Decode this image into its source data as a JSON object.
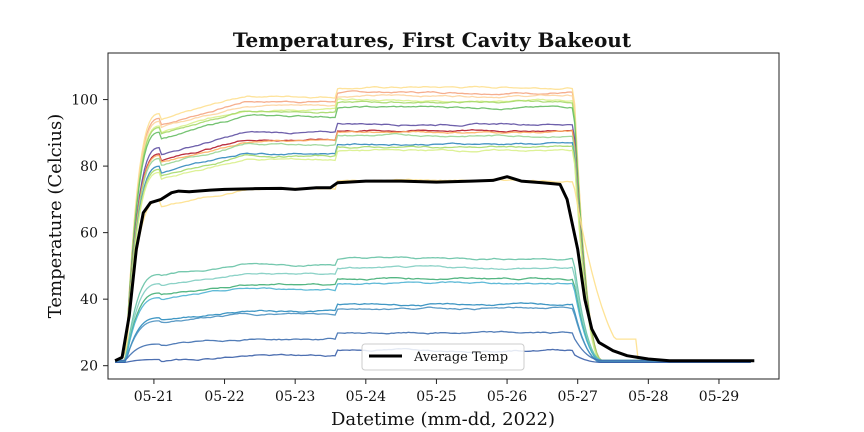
{
  "chart_data": {
    "type": "line",
    "title": "Temperatures, First Cavity Bakeout",
    "xlabel": "Datetime (mm-dd, 2022)",
    "ylabel": "Temperature (Celcius)",
    "xlim": [
      -0.65,
      8.85
    ],
    "ylim": [
      16,
      114
    ],
    "xticks": [
      0,
      1,
      2,
      3,
      4,
      5,
      6,
      7,
      8
    ],
    "xtick_labels": [
      "05-21",
      "05-22",
      "05-23",
      "05-24",
      "05-25",
      "05-26",
      "05-27",
      "05-28",
      "05-29"
    ],
    "yticks": [
      20,
      40,
      60,
      80,
      100
    ],
    "ytick_labels": [
      "20",
      "40",
      "60",
      "80",
      "100"
    ],
    "legend": {
      "position": "bottom-center",
      "entries": [
        "Average Temp"
      ]
    },
    "grid": false,
    "sensors": [
      {
        "plateau": 101.5,
        "color": "#f4a582",
        "late": 0
      },
      {
        "plateau": 103,
        "color": "#fee090",
        "late": 0
      },
      {
        "plateau": 100.5,
        "color": "#fdd49e",
        "late": 0
      },
      {
        "plateau": 99,
        "color": "#d9ef8b",
        "late": 0
      },
      {
        "plateau": 98.5,
        "color": "#a6d96a",
        "late": 0
      },
      {
        "plateau": 97,
        "color": "#66bd63",
        "late": 0
      },
      {
        "plateau": 92,
        "color": "#5e4fa2",
        "late": 0
      },
      {
        "plateau": 90,
        "color": "#b2182b",
        "late": 0
      },
      {
        "plateau": 89.5,
        "color": "#fdae61",
        "late": 0
      },
      {
        "plateau": 88.5,
        "color": "#99d594",
        "late": 0
      },
      {
        "plateau": 86,
        "color": "#3288bd",
        "late": 0
      },
      {
        "plateau": 85,
        "color": "#a6d96a",
        "late": 0
      },
      {
        "plateau": 84,
        "color": "#d9ef8b",
        "late": 0
      },
      {
        "plateau": 75,
        "color": "#fee08b",
        "late": 1
      },
      {
        "plateau": 51,
        "color": "#66c2a5",
        "late": 0
      },
      {
        "plateau": 48,
        "color": "#80cdc1",
        "late": 0
      },
      {
        "plateau": 45,
        "color": "#41ae76",
        "late": 0
      },
      {
        "plateau": 43.5,
        "color": "#4eb3d3",
        "late": 0
      },
      {
        "plateau": 37,
        "color": "#2b8cbe",
        "late": 0
      },
      {
        "plateau": 36,
        "color": "#4a90c0",
        "late": 0
      },
      {
        "plateau": 28.5,
        "color": "#3f6fb0",
        "late": 0
      },
      {
        "plateau": 23.5,
        "color": "#3a5fa8",
        "late": 0
      }
    ],
    "average": {
      "name": "Average Temp",
      "color": "#000000",
      "x": [
        -0.55,
        -0.45,
        -0.35,
        -0.25,
        -0.15,
        -0.05,
        0.1,
        0.25,
        0.35,
        0.5,
        0.8,
        1.0,
        1.4,
        1.8,
        2.0,
        2.3,
        2.5,
        2.6,
        3.0,
        3.5,
        4.0,
        4.5,
        4.8,
        5.0,
        5.2,
        5.5,
        5.75,
        5.85,
        6.0,
        6.1,
        6.2,
        6.3,
        6.5,
        6.7,
        7.0,
        7.3,
        8.0,
        8.5
      ],
      "y": [
        21.5,
        22.5,
        35,
        55,
        66,
        69,
        70,
        72,
        72.5,
        72.3,
        72.8,
        73,
        73.2,
        73.3,
        73,
        73.5,
        73.5,
        75,
        75.5,
        75.5,
        75.2,
        75.5,
        75.7,
        76.8,
        75.5,
        75,
        74.5,
        70,
        55,
        40,
        31,
        27,
        24.5,
        23,
        22,
        21.5,
        21.5,
        21.5
      ]
    }
  }
}
